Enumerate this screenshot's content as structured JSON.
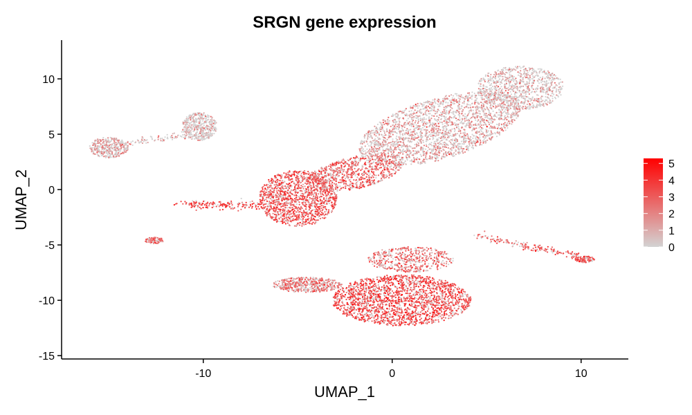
{
  "chart_data": {
    "type": "scatter",
    "title": "SRGN gene expression",
    "xlabel": "UMAP_1",
    "ylabel": "UMAP_2",
    "xlim": [
      -17.5,
      12.5
    ],
    "ylim": [
      -15.3,
      13.5
    ],
    "x_ticks": [
      -10,
      0,
      10
    ],
    "y_ticks": [
      -15,
      -10,
      -5,
      0,
      5,
      10
    ],
    "x_tick_labels": [
      "-10",
      "0",
      "10"
    ],
    "y_tick_labels": [
      "-15",
      "-10",
      "-5",
      "0",
      "5",
      "10"
    ],
    "colorbar": {
      "title": "",
      "min": 0,
      "max": 5.3,
      "ticks": [
        0,
        1,
        2,
        3,
        4,
        5
      ],
      "tick_labels": [
        "0",
        "1",
        "2",
        "3",
        "4",
        "5"
      ],
      "low_color": "#d3d3d3",
      "high_color": "#ff0000"
    },
    "legend_position": "right",
    "grid": false,
    "clusters": [
      {
        "name": "upper-right-elongated",
        "cx": 2.5,
        "cy": 5.5,
        "sx": 4.2,
        "sy": 2.2,
        "angle": 33,
        "n": 2400,
        "mean_expr": 0.9
      },
      {
        "name": "upper-right-head",
        "cx": 6.8,
        "cy": 9.2,
        "sx": 2.0,
        "sy": 1.7,
        "angle": 0,
        "n": 900,
        "mean_expr": 0.6
      },
      {
        "name": "middle-left-large",
        "cx": -5.0,
        "cy": -0.8,
        "sx": 1.8,
        "sy": 2.2,
        "angle": 0,
        "n": 1400,
        "mean_expr": 2.6
      },
      {
        "name": "middle-bridge",
        "cx": -2.0,
        "cy": 1.5,
        "sx": 2.4,
        "sy": 1.2,
        "angle": 25,
        "n": 800,
        "mean_expr": 2.3
      },
      {
        "name": "lower-main",
        "cx": 0.5,
        "cy": -10.0,
        "sx": 3.2,
        "sy": 2.0,
        "angle": 0,
        "n": 2600,
        "mean_expr": 2.8
      },
      {
        "name": "lower-left-arm",
        "cx": -4.5,
        "cy": -8.6,
        "sx": 1.6,
        "sy": 0.6,
        "angle": 0,
        "n": 500,
        "mean_expr": 1.8
      },
      {
        "name": "lower-upper-lobe",
        "cx": 1.0,
        "cy": -6.3,
        "sx": 2.0,
        "sy": 1.0,
        "angle": 0,
        "n": 500,
        "mean_expr": 2.0
      },
      {
        "name": "left-small-round",
        "cx": -10.2,
        "cy": 5.7,
        "sx": 0.8,
        "sy": 1.1,
        "angle": 0,
        "n": 450,
        "mean_expr": 0.5
      },
      {
        "name": "far-left-round",
        "cx": -15.0,
        "cy": 3.8,
        "sx": 0.9,
        "sy": 0.8,
        "angle": 0,
        "n": 380,
        "mean_expr": 0.9
      },
      {
        "name": "left-mini",
        "cx": -12.6,
        "cy": -4.6,
        "sx": 0.45,
        "sy": 0.25,
        "angle": 0,
        "n": 90,
        "mean_expr": 2.3
      },
      {
        "name": "right-tip",
        "cx": 10.2,
        "cy": -6.3,
        "sx": 0.45,
        "sy": 0.25,
        "angle": 0,
        "n": 110,
        "mean_expr": 2.6
      },
      {
        "name": "streak-right",
        "x0": 4.5,
        "y0": -4.2,
        "x1": 9.8,
        "y1": -6.0,
        "width": 0.15,
        "n": 160,
        "mean_expr": 2.4
      },
      {
        "name": "streak-left",
        "x0": -11.2,
        "y0": -1.2,
        "x1": -7.0,
        "y1": -1.5,
        "width": 0.2,
        "n": 160,
        "mean_expr": 3.0
      },
      {
        "name": "streak-upper-left",
        "x0": -14.0,
        "y0": 4.2,
        "x1": -10.5,
        "y1": 5.0,
        "width": 0.15,
        "n": 80,
        "mean_expr": 0.8
      }
    ]
  }
}
